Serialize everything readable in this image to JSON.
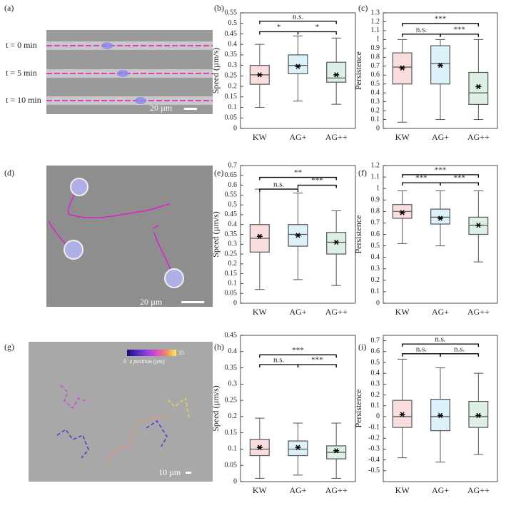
{
  "images": [
    {
      "label": "(a)",
      "texts": [
        "t = 0 min",
        "t = 5 min",
        "t = 10 min"
      ],
      "scale_bar": "20 µm"
    },
    {
      "label": "(d)",
      "scale_bar": "20 µm"
    },
    {
      "label": "(g)",
      "scale_bar": "10 µm",
      "colorbar_label": "z position (µm)",
      "colorbar_ticks": [
        0,
        35
      ]
    }
  ],
  "chart_data": [
    {
      "type": "box",
      "panel_label": "(b)",
      "ylabel": "Speed (µm/s)",
      "categories": [
        "KW",
        "AG+",
        "AG++"
      ],
      "colors": [
        "#e0242b",
        "#1aa3e0",
        "#1a9a50"
      ],
      "ylim": [
        0,
        0.55
      ],
      "yticks": [
        0,
        0.05,
        0.1,
        0.15,
        0.2,
        0.25,
        0.3,
        0.35,
        0.4,
        0.45,
        0.5,
        0.55
      ],
      "stats": {
        "whisker_low": [
          0.1,
          0.13,
          0.115
        ],
        "q1": [
          0.21,
          0.26,
          0.22
        ],
        "median": [
          0.255,
          0.3,
          0.24
        ],
        "q3": [
          0.3,
          0.35,
          0.315
        ],
        "whisker_high": [
          0.4,
          0.44,
          0.43
        ],
        "mean": [
          0.255,
          0.295,
          0.255
        ]
      },
      "significance": [
        {
          "from": "KW",
          "to": "AG++",
          "y": 0.51,
          "label": "n.s."
        },
        {
          "from": "KW",
          "to": "AG+",
          "y": 0.46,
          "label": "*"
        },
        {
          "from": "AG+",
          "to": "AG++",
          "y": 0.46,
          "label": "*"
        }
      ]
    },
    {
      "type": "box",
      "panel_label": "(c)",
      "ylabel": "Persistence",
      "categories": [
        "KW",
        "AG+",
        "AG++"
      ],
      "colors": [
        "#e0242b",
        "#1aa3e0",
        "#1a9a50"
      ],
      "ylim": [
        0,
        1.3
      ],
      "yticks": [
        0,
        0.1,
        0.2,
        0.3,
        0.4,
        0.5,
        0.6,
        0.7,
        0.8,
        0.9,
        1,
        1.1,
        1.2,
        1.3
      ],
      "stats": {
        "whisker_low": [
          0.07,
          0.1,
          0.1
        ],
        "q1": [
          0.5,
          0.5,
          0.27
        ],
        "median": [
          0.69,
          0.73,
          0.4
        ],
        "q3": [
          0.85,
          0.93,
          0.63
        ],
        "whisker_high": [
          1,
          1,
          1
        ],
        "mean": [
          0.68,
          0.71,
          0.47
        ]
      },
      "significance": [
        {
          "from": "KW",
          "to": "AG++",
          "y": 1.18,
          "label": "***"
        },
        {
          "from": "KW",
          "to": "AG+",
          "y": 1.06,
          "label": "n.s."
        },
        {
          "from": "AG+",
          "to": "AG++",
          "y": 1.06,
          "label": "***"
        }
      ]
    },
    {
      "type": "box",
      "panel_label": "(e)",
      "ylabel": "Speed (µm/s)",
      "categories": [
        "KW",
        "AG+",
        "AG++"
      ],
      "colors": [
        "#e0242b",
        "#1aa3e0",
        "#1a9a50"
      ],
      "ylim": [
        0,
        0.7
      ],
      "yticks": [
        0,
        0.05,
        0.1,
        0.15,
        0.2,
        0.25,
        0.3,
        0.35,
        0.4,
        0.45,
        0.5,
        0.55,
        0.6,
        0.65,
        0.7
      ],
      "stats": {
        "whisker_low": [
          0.07,
          0.12,
          0.09
        ],
        "q1": [
          0.26,
          0.29,
          0.25
        ],
        "median": [
          0.33,
          0.35,
          0.31
        ],
        "q3": [
          0.4,
          0.4,
          0.36
        ],
        "whisker_high": [
          0.58,
          0.56,
          0.47
        ],
        "mean": [
          0.34,
          0.345,
          0.31
        ]
      },
      "significance": [
        {
          "from": "KW",
          "to": "AG++",
          "y": 0.64,
          "label": "**"
        },
        {
          "from": "KW",
          "to": "AG+",
          "y": 0.58,
          "label": "n.s."
        },
        {
          "from": "AG+",
          "to": "AG++",
          "y": 0.6,
          "label": "***"
        }
      ]
    },
    {
      "type": "box",
      "panel_label": "(f)",
      "ylabel": "Persistence",
      "categories": [
        "KW",
        "AG+",
        "AG++"
      ],
      "colors": [
        "#e0242b",
        "#1aa3e0",
        "#1a9a50"
      ],
      "ylim": [
        0,
        1.2
      ],
      "yticks": [
        0,
        0.1,
        0.2,
        0.3,
        0.4,
        0.5,
        0.6,
        0.7,
        0.8,
        0.9,
        1,
        1.1,
        1.2
      ],
      "stats": {
        "whisker_low": [
          0.52,
          0.5,
          0.36
        ],
        "q1": [
          0.74,
          0.69,
          0.6
        ],
        "median": [
          0.8,
          0.75,
          0.68
        ],
        "q3": [
          0.86,
          0.82,
          0.75
        ],
        "whisker_high": [
          0.98,
          0.98,
          0.98
        ],
        "mean": [
          0.79,
          0.74,
          0.68
        ]
      },
      "significance": [
        {
          "from": "KW",
          "to": "AG++",
          "y": 1.12,
          "label": "***"
        },
        {
          "from": "KW",
          "to": "AG+",
          "y": 1.05,
          "label": "***"
        },
        {
          "from": "AG+",
          "to": "AG++",
          "y": 1.05,
          "label": "***"
        }
      ]
    },
    {
      "type": "box",
      "panel_label": "(h)",
      "ylabel": "Speed (µm/s)",
      "categories": [
        "KW",
        "AG+",
        "AG++"
      ],
      "colors": [
        "#e0242b",
        "#1aa3e0",
        "#1a9a50"
      ],
      "ylim": [
        0,
        0.45
      ],
      "yticks": [
        0,
        0.05,
        0.1,
        0.15,
        0.2,
        0.25,
        0.3,
        0.35,
        0.4,
        0.45
      ],
      "stats": {
        "whisker_low": [
          0.01,
          0.02,
          0.01
        ],
        "q1": [
          0.08,
          0.08,
          0.07
        ],
        "median": [
          0.1,
          0.1,
          0.09
        ],
        "q3": [
          0.13,
          0.125,
          0.11
        ],
        "whisker_high": [
          0.195,
          0.18,
          0.18
        ],
        "mean": [
          0.105,
          0.105,
          0.095
        ]
      },
      "significance": [
        {
          "from": "KW",
          "to": "AG++",
          "y": 0.39,
          "label": "***"
        },
        {
          "from": "KW",
          "to": "AG+",
          "y": 0.36,
          "label": "n.s."
        },
        {
          "from": "AG+",
          "to": "AG++",
          "y": 0.36,
          "label": "***"
        }
      ]
    },
    {
      "type": "box",
      "panel_label": "(i)",
      "ylabel": "Persistence",
      "categories": [
        "KW",
        "AG+",
        "AG++"
      ],
      "colors": [
        "#e0242b",
        "#1aa3e0",
        "#1a9a50"
      ],
      "ylim": [
        -0.6,
        0.75
      ],
      "yticks": [
        -0.5,
        -0.4,
        -0.3,
        -0.2,
        -0.1,
        0,
        0.1,
        0.2,
        0.3,
        0.4,
        0.5,
        0.6,
        0.7
      ],
      "stats": {
        "whisker_low": [
          -0.38,
          -0.42,
          -0.35
        ],
        "q1": [
          -0.1,
          -0.13,
          -0.1
        ],
        "median": [
          0,
          0,
          0
        ],
        "q3": [
          0.15,
          0.16,
          0.14
        ],
        "whisker_high": [
          0.53,
          0.45,
          0.4
        ],
        "mean": [
          0.02,
          0.01,
          0.01
        ]
      },
      "significance": [
        {
          "from": "KW",
          "to": "AG++",
          "y": 0.67,
          "label": "n.s."
        },
        {
          "from": "KW",
          "to": "AG+",
          "y": 0.58,
          "label": "n.s."
        },
        {
          "from": "AG+",
          "to": "AG++",
          "y": 0.58,
          "label": "n.s."
        }
      ]
    }
  ]
}
